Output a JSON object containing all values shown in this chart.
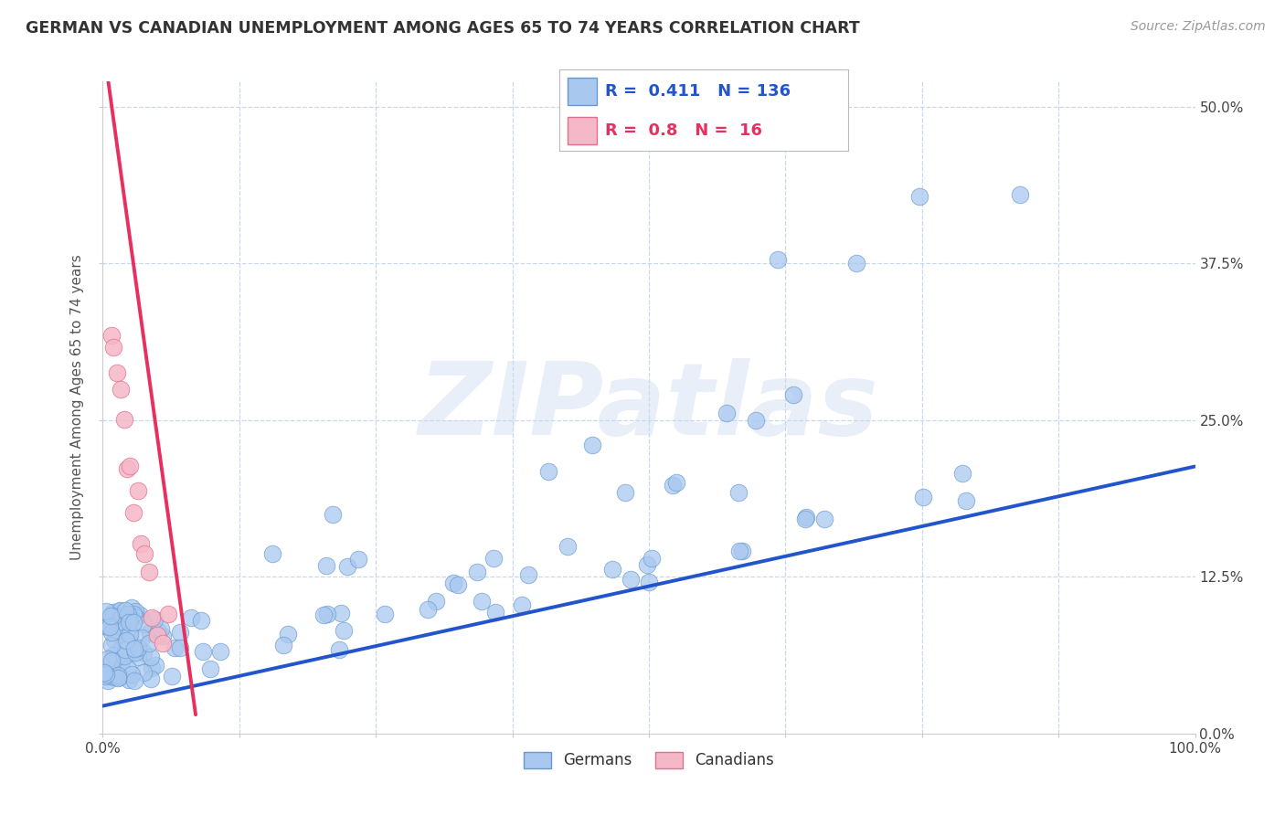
{
  "title": "GERMAN VS CANADIAN UNEMPLOYMENT AMONG AGES 65 TO 74 YEARS CORRELATION CHART",
  "source": "Source: ZipAtlas.com",
  "ylabel": "Unemployment Among Ages 65 to 74 years",
  "xlim": [
    0,
    1.0
  ],
  "ylim": [
    0.0,
    0.52
  ],
  "xticks": [
    0.0,
    0.125,
    0.25,
    0.375,
    0.5,
    0.625,
    0.75,
    0.875,
    1.0
  ],
  "xtick_labels": [
    "0.0%",
    "",
    "",
    "",
    "",
    "",
    "",
    "",
    "100.0%"
  ],
  "yticks": [
    0.0,
    0.125,
    0.25,
    0.375,
    0.5
  ],
  "ytick_labels_right": [
    "0.0%",
    "12.5%",
    "25.0%",
    "37.5%",
    "50.0%"
  ],
  "german_color": "#a8c8f0",
  "german_edge_color": "#6699cc",
  "canadian_color": "#f5b8c8",
  "canadian_edge_color": "#e07090",
  "german_line_color": "#2255cc",
  "canadian_line_color": "#e83060",
  "R_german": 0.411,
  "N_german": 136,
  "R_canadian": 0.8,
  "N_canadian": 16,
  "watermark": "ZIPatlas",
  "background_color": "#ffffff",
  "grid_color": "#c8d8e8",
  "blue_line_x": [
    0.0,
    1.0
  ],
  "blue_line_y": [
    0.022,
    0.213
  ],
  "pink_line_x": [
    0.005,
    0.085
  ],
  "pink_line_y": [
    0.52,
    0.015
  ]
}
